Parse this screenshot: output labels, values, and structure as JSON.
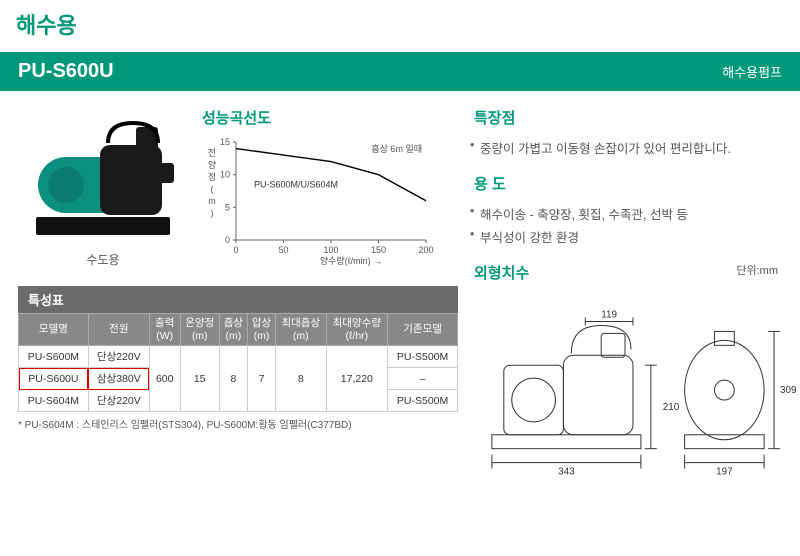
{
  "page_title": "해수용",
  "model_bar": {
    "name": "PU-S600U",
    "subtitle": "해수용펌프"
  },
  "pump_label": "수도용",
  "chart": {
    "title": "성능곡선도",
    "ylabel": "전 양 정 (m)",
    "xlabel": "양수량(ℓ/min) →",
    "note": "흡상 6m 일때",
    "series_label": "PU-S600M/U/S604M",
    "xlim": [
      0,
      200
    ],
    "xticks": [
      0,
      50,
      100,
      150,
      200
    ],
    "ylim": [
      0,
      15
    ],
    "yticks": [
      0,
      5,
      10,
      15
    ],
    "curve": [
      [
        0,
        14
      ],
      [
        50,
        13
      ],
      [
        100,
        12
      ],
      [
        150,
        10
      ],
      [
        200,
        6
      ]
    ],
    "color_axis": "#666",
    "color_curve": "#000",
    "bg": "#fff"
  },
  "spec_table": {
    "title": "특성표",
    "headers": [
      "모델명",
      "전원",
      "출력\n(W)",
      "온양정\n(m)",
      "흡상\n(m)",
      "압상\n(m)",
      "최대흡상\n(m)",
      "최대양수량\n(ℓ/hr)",
      "기존모델"
    ],
    "rows": [
      {
        "cells": [
          "PU-S600M",
          "단상220V",
          "",
          "",
          "",
          "",
          "",
          "",
          "PU-S500M"
        ]
      },
      {
        "cells": [
          "PU-S600U",
          "삼상380V",
          "600",
          "15",
          "8",
          "7",
          "8",
          "17,220",
          "–"
        ],
        "highlight": [
          0,
          1
        ]
      },
      {
        "cells": [
          "PU-S604M",
          "단상220V",
          "",
          "",
          "",
          "",
          "",
          "",
          "PU-S500M"
        ]
      }
    ],
    "merged": {
      "col2_rowspan": 3,
      "col3_rowspan": 3,
      "col4_rowspan": 3,
      "col5_rowspan": 3,
      "col6_rowspan": 3,
      "col7_rowspan": 3
    },
    "footnote": "* PU-S604M : 스테인리스 임펠러(STS304), PU-S600M:황동 임펠러(C377BD)"
  },
  "features": {
    "title": "특장점",
    "items": [
      "중량이 가볍고 이동형 손잡이가 있어 편리합니다."
    ]
  },
  "usage": {
    "title": "용 도",
    "items": [
      "해수이송 - 축양장, 횟집, 수족관, 선박 등",
      "부식성이 강한 환경"
    ]
  },
  "dimensions": {
    "title": "외형치수",
    "unit": "단위:mm",
    "labels": {
      "w1": "343",
      "h1": "210",
      "h2": "309",
      "w2": "119",
      "w3": "197"
    }
  },
  "colors": {
    "brand": "#009879",
    "header_gray": "#6b6b6b",
    "th_gray": "#888",
    "pump_body": "#222",
    "pump_motor": "#0b8f7e",
    "pump_base": "#111"
  }
}
